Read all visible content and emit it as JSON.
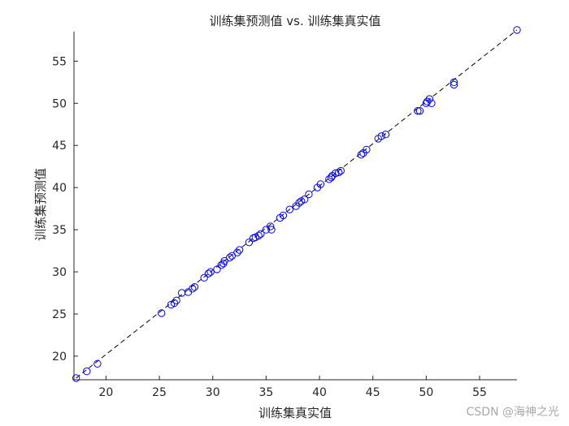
{
  "chart_data": {
    "type": "scatter",
    "title": "训练集预测值 vs. 训练集真实值",
    "xlabel": "训练集真实值",
    "ylabel": "训练集预测值",
    "xlim": [
      17,
      58.5
    ],
    "ylim": [
      17.2,
      58.5
    ],
    "xticks": [
      20,
      25,
      30,
      35,
      40,
      45,
      50,
      55
    ],
    "yticks": [
      20,
      25,
      30,
      35,
      40,
      45,
      50,
      55
    ],
    "grid": false,
    "marker": "open-circle",
    "marker_color": "#0000ff",
    "reference_line": {
      "style": "dashed",
      "color": "#000000",
      "from": [
        17.2,
        17.4
      ],
      "to": [
        58.5,
        58.7
      ]
    },
    "x": [
      17.2,
      18.2,
      19.2,
      25.2,
      26.1,
      26.4,
      26.6,
      27.1,
      27.7,
      28.1,
      28.3,
      29.2,
      29.6,
      29.8,
      30.4,
      30.8,
      31.0,
      31.1,
      31.6,
      31.8,
      32.3,
      32.5,
      33.4,
      33.8,
      34.0,
      34.3,
      34.5,
      35.0,
      35.4,
      35.5,
      36.3,
      36.6,
      37.2,
      37.8,
      38.1,
      38.3,
      38.6,
      39.0,
      39.8,
      40.1,
      40.9,
      41.1,
      41.2,
      41.5,
      41.8,
      42.0,
      43.9,
      44.1,
      44.4,
      45.5,
      45.8,
      46.2,
      49.2,
      49.4,
      50.0,
      50.1,
      50.3,
      50.5,
      52.6,
      52.6,
      58.5
    ],
    "y": [
      17.4,
      18.2,
      19.1,
      25.1,
      26.1,
      26.3,
      26.6,
      27.5,
      27.6,
      28.0,
      28.2,
      29.3,
      29.8,
      30.0,
      30.3,
      30.8,
      31.0,
      31.3,
      31.7,
      31.9,
      32.3,
      32.6,
      33.5,
      34.0,
      34.1,
      34.3,
      34.5,
      35.0,
      35.4,
      35.0,
      36.4,
      36.7,
      37.4,
      37.8,
      38.2,
      38.4,
      38.6,
      39.2,
      40.0,
      40.4,
      41.0,
      41.2,
      41.4,
      41.7,
      41.8,
      42.0,
      43.9,
      44.1,
      44.5,
      45.8,
      46.1,
      46.3,
      49.1,
      49.1,
      50.0,
      50.2,
      50.5,
      50.0,
      52.2,
      52.5,
      58.7
    ]
  },
  "watermark": "CSDN @海神之光"
}
